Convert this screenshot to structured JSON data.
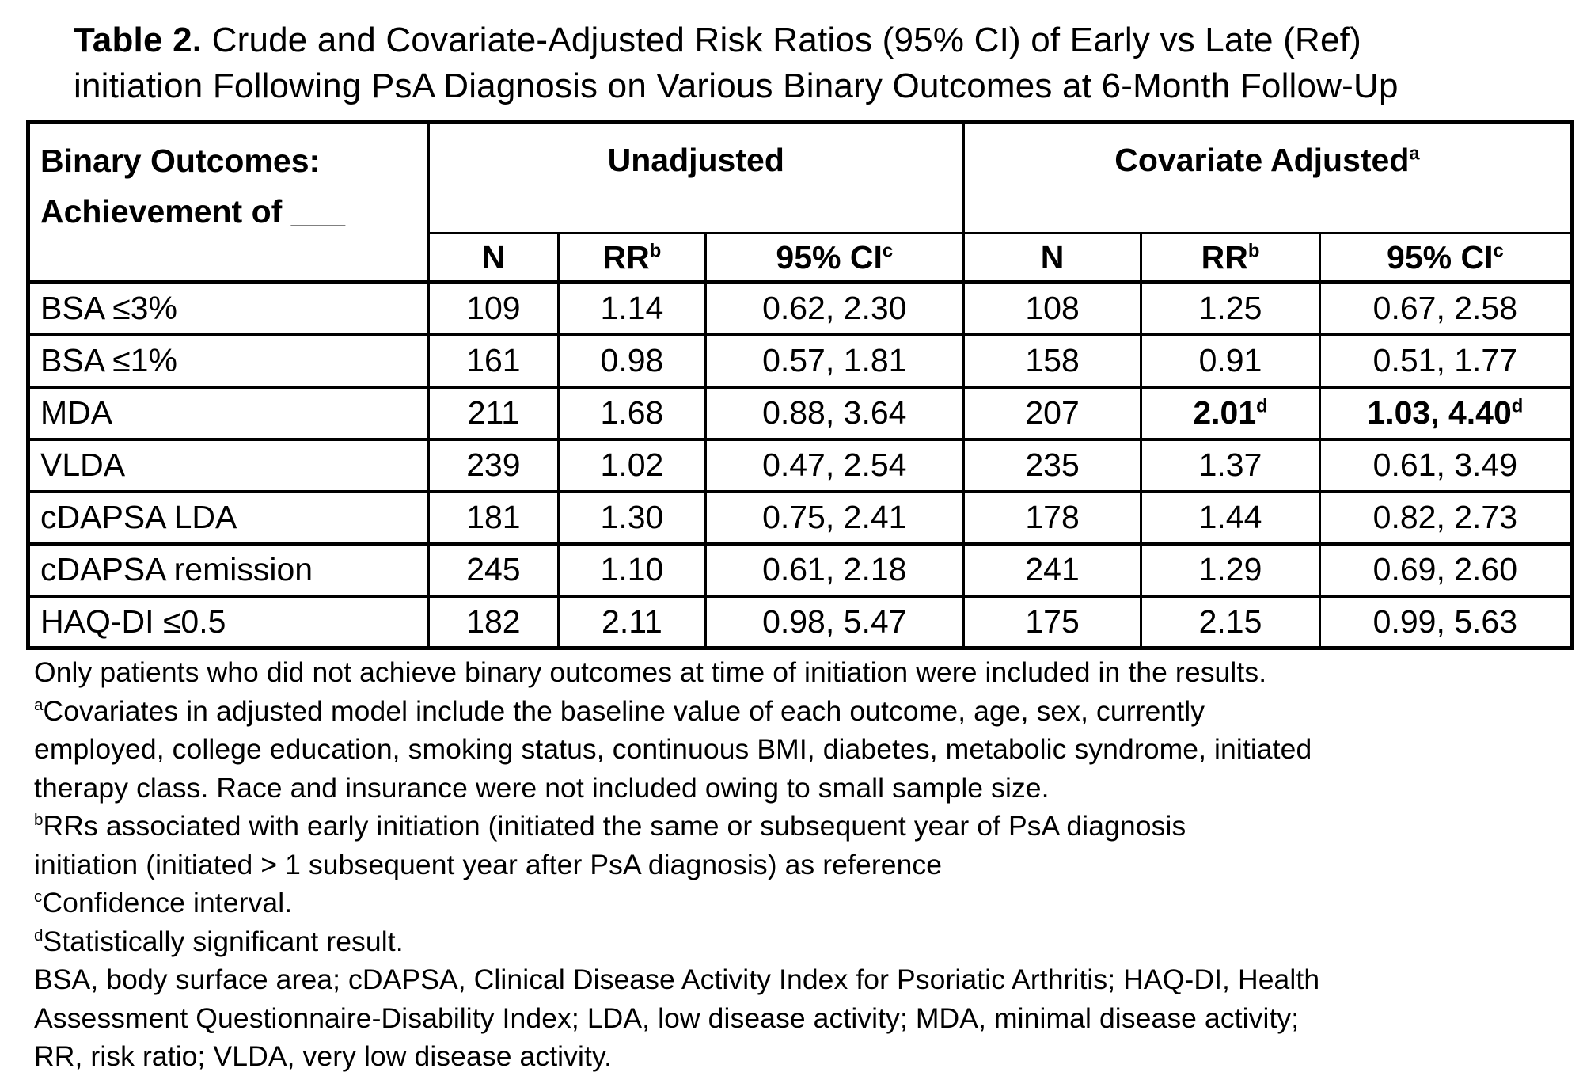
{
  "colors": {
    "text": "#000000",
    "background": "#ffffff",
    "border": "#000000"
  },
  "title": {
    "label": "Table 2.",
    "text": " Crude and Covariate-Adjusted Risk Ratios (95% CI) of Early vs Late (Ref)\ninitiation Following PsA Diagnosis on Various Binary Outcomes at 6-Month Follow-Up"
  },
  "table": {
    "corner_header": "Binary Outcomes:\nAchievement of ___",
    "group_headers": [
      {
        "label": "Unadjusted",
        "sup": ""
      },
      {
        "label": "Covariate Adjusted",
        "sup": "a"
      }
    ],
    "sub_headers": [
      {
        "label": "N",
        "sup": ""
      },
      {
        "label": "RR",
        "sup": "b"
      },
      {
        "label": "95% CI",
        "sup": "c"
      },
      {
        "label": "N",
        "sup": ""
      },
      {
        "label": "RR",
        "sup": "b"
      },
      {
        "label": "95% CI",
        "sup": "c"
      }
    ],
    "rows": [
      {
        "outcome": "BSA ≤3%",
        "cells": [
          {
            "text": "109"
          },
          {
            "text": "1.14"
          },
          {
            "text": "0.62, 2.30"
          },
          {
            "text": "108"
          },
          {
            "text": "1.25"
          },
          {
            "text": "0.67, 2.58"
          }
        ]
      },
      {
        "outcome": "BSA ≤1%",
        "cells": [
          {
            "text": "161"
          },
          {
            "text": "0.98"
          },
          {
            "text": "0.57, 1.81"
          },
          {
            "text": "158"
          },
          {
            "text": "0.91"
          },
          {
            "text": "0.51, 1.77"
          }
        ]
      },
      {
        "outcome": "MDA",
        "cells": [
          {
            "text": "211"
          },
          {
            "text": "1.68"
          },
          {
            "text": "0.88, 3.64"
          },
          {
            "text": "207"
          },
          {
            "text": "2.01",
            "sup": "d",
            "bold": true
          },
          {
            "text": "1.03, 4.40",
            "sup": "d",
            "bold": true
          }
        ]
      },
      {
        "outcome": "VLDA",
        "cells": [
          {
            "text": "239"
          },
          {
            "text": "1.02"
          },
          {
            "text": "0.47, 2.54"
          },
          {
            "text": "235"
          },
          {
            "text": "1.37"
          },
          {
            "text": "0.61, 3.49"
          }
        ]
      },
      {
        "outcome": "cDAPSA LDA",
        "cells": [
          {
            "text": "181"
          },
          {
            "text": "1.30"
          },
          {
            "text": "0.75, 2.41"
          },
          {
            "text": "178"
          },
          {
            "text": "1.44"
          },
          {
            "text": "0.82, 2.73"
          }
        ]
      },
      {
        "outcome": "cDAPSA remission",
        "cells": [
          {
            "text": "245"
          },
          {
            "text": "1.10"
          },
          {
            "text": "0.61, 2.18"
          },
          {
            "text": "241"
          },
          {
            "text": "1.29"
          },
          {
            "text": "0.69, 2.60"
          }
        ]
      },
      {
        "outcome": "HAQ-DI ≤0.5",
        "cells": [
          {
            "text": "182"
          },
          {
            "text": "2.11"
          },
          {
            "text": "0.98, 5.47"
          },
          {
            "text": "175"
          },
          {
            "text": "2.15"
          },
          {
            "text": "0.99, 5.63"
          }
        ]
      }
    ]
  },
  "footnotes": [
    {
      "sup": "",
      "text": "Only patients who did not achieve binary outcomes at time of initiation were included in the results."
    },
    {
      "sup": "a",
      "text": "Covariates in adjusted model include the baseline value of each outcome, age, sex, currently\nemployed, college education, smoking status, continuous BMI, diabetes, metabolic syndrome, initiated\ntherapy class. Race and insurance were not included owing to small sample size."
    },
    {
      "sup": "b",
      "text": "RRs associated with early initiation (initiated the same or subsequent year of PsA diagnosis\ninitiation (initiated > 1 subsequent year after PsA diagnosis) as reference"
    },
    {
      "sup": "c",
      "text": "Confidence interval."
    },
    {
      "sup": "d",
      "text": "Statistically significant result."
    },
    {
      "sup": "",
      "text": "BSA, body surface area; cDAPSA, Clinical Disease Activity Index for Psoriatic Arthritis; HAQ-DI, Health\nAssessment Questionnaire-Disability Index; LDA, low disease activity; MDA, minimal disease activity;\nRR, risk ratio; VLDA, very low disease activity."
    }
  ]
}
